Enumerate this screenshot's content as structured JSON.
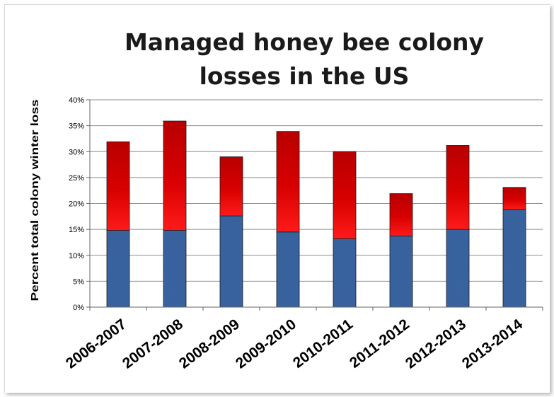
{
  "chart_data": {
    "type": "bar",
    "stacked": true,
    "title_lines": [
      "Managed honey bee colony",
      "losses in the US"
    ],
    "ylabel": "Percent total colony winter loss",
    "xlabel": "",
    "ylim": [
      0,
      0.4
    ],
    "yticks": [
      "0%",
      "5%",
      "10%",
      "15%",
      "20%",
      "25%",
      "30%",
      "35%",
      "40%"
    ],
    "categories": [
      "2006-2007",
      "2007-2008",
      "2008-2009",
      "2009-2010",
      "2010-2011",
      "2011-2012",
      "2012-2013",
      "2013-2014"
    ],
    "series": [
      {
        "values": [
          0.148,
          0.148,
          0.176,
          0.145,
          0.132,
          0.137,
          0.15,
          0.188
        ],
        "color": "#3a65a0"
      },
      {
        "values": [
          0.171,
          0.211,
          0.114,
          0.194,
          0.168,
          0.082,
          0.162,
          0.043
        ],
        "color": "#cc0000"
      }
    ],
    "grid": true,
    "legend": "none"
  }
}
